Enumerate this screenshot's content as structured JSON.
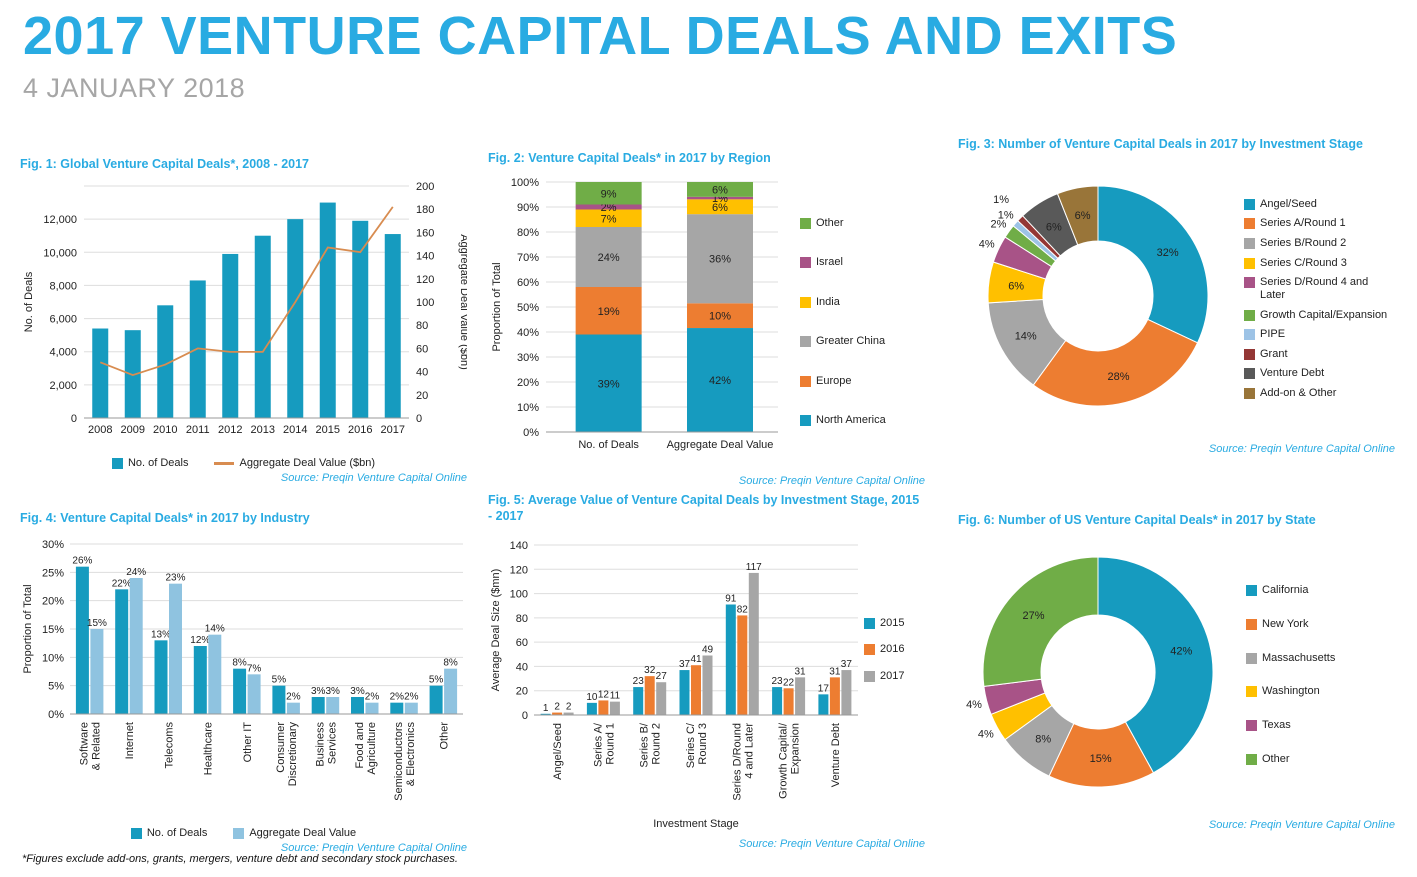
{
  "header": {
    "title": "2017 VENTURE CAPITAL DEALS AND EXITS",
    "date": "4 JANUARY 2018"
  },
  "source_label": "Source: Preqin Venture Capital Online",
  "footnote": "*Figures exclude add-ons, grants, mergers, venture debt and secondary stock purchases.",
  "colors": {
    "accent": "#29ABE2",
    "subtitle_gray": "#A6A6A6"
  },
  "chart_data": [
    {
      "id": "fig1",
      "type": "combo",
      "title": "Fig. 1: Global Venture Capital Deals*, 2008 - 2017",
      "categories": [
        "2008",
        "2009",
        "2010",
        "2011",
        "2012",
        "2013",
        "2014",
        "2015",
        "2016",
        "2017"
      ],
      "bar_series": {
        "name": "No. of Deals",
        "color": "#169BBF",
        "values": [
          5400,
          5300,
          6800,
          8300,
          9900,
          11000,
          12000,
          13000,
          11900,
          11100
        ]
      },
      "line_series": {
        "name": "Aggregate Deal Value ($bn)",
        "color": "#D88C50",
        "values": [
          48,
          37,
          46,
          60,
          57,
          57,
          100,
          147,
          143,
          182
        ]
      },
      "left_axis": {
        "label": "No. of Deals",
        "max": 14000,
        "step": 2000,
        "tick_labels": [
          "0",
          "2,000",
          "4,000",
          "6,000",
          "8,000",
          "10,000",
          "12,000"
        ]
      },
      "right_axis": {
        "label": "Aggregate Deal Value ($bn)",
        "max": 200,
        "step": 20
      }
    },
    {
      "id": "fig2",
      "type": "stacked",
      "title": "Fig. 2: Venture Capital Deals* in 2017 by Region",
      "ylabel": "Proportion of Total",
      "categories": [
        "No. of Deals",
        "Aggregate Deal Value"
      ],
      "series": [
        {
          "name": "North America",
          "color": "#169BBF",
          "values": [
            39,
            42
          ]
        },
        {
          "name": "Europe",
          "color": "#ED7D31",
          "values": [
            19,
            10
          ]
        },
        {
          "name": "Greater China",
          "color": "#A6A6A6",
          "values": [
            24,
            36
          ]
        },
        {
          "name": "India",
          "color": "#FFC000",
          "values": [
            7,
            6
          ]
        },
        {
          "name": "Israel",
          "color": "#A85387",
          "values": [
            2,
            1
          ]
        },
        {
          "name": "Other",
          "color": "#70AD47",
          "values": [
            9,
            6
          ]
        }
      ]
    },
    {
      "id": "fig3",
      "type": "donut",
      "title": "Fig. 3: Number of Venture Capital Deals in 2017 by Investment Stage",
      "slices": [
        {
          "label": "Angel/Seed",
          "value": 32,
          "color": "#169BBF"
        },
        {
          "label": "Series A/Round 1",
          "value": 28,
          "color": "#ED7D31"
        },
        {
          "label": "Series B/Round 2",
          "value": 14,
          "color": "#A6A6A6"
        },
        {
          "label": "Series C/Round 3",
          "value": 6,
          "color": "#FFC000"
        },
        {
          "label": "Series D/Round 4 and Later",
          "value": 4,
          "color": "#A85387"
        },
        {
          "label": "Growth Capital/Expansion",
          "value": 2,
          "color": "#70AD47"
        },
        {
          "label": "PIPE",
          "value": 1,
          "color": "#9DC3E6"
        },
        {
          "label": "Grant",
          "value": 1,
          "color": "#943735"
        },
        {
          "label": "Venture Debt",
          "value": 6,
          "color": "#595959"
        },
        {
          "label": "Add-on & Other",
          "value": 6,
          "color": "#997539"
        }
      ]
    },
    {
      "id": "fig4",
      "type": "grouped",
      "title": "Fig. 4: Venture Capital Deals* in 2017 by Industry",
      "ylabel": "Proportion of Total",
      "y_max": 30,
      "y_step": 5,
      "y_suffix": "%",
      "label_suffix": "%",
      "categories": [
        [
          "Software",
          "& Related"
        ],
        [
          "Internet"
        ],
        [
          "Telecoms"
        ],
        [
          "Healthcare"
        ],
        [
          "Other IT"
        ],
        [
          "Consumer",
          "Discretionary"
        ],
        [
          "Business",
          "Services"
        ],
        [
          "Food and",
          "Agriculture"
        ],
        [
          "Semiconductors",
          "& Electronics"
        ],
        [
          "Other"
        ]
      ],
      "series": [
        {
          "name": "No. of Deals",
          "color": "#169BBF",
          "values": [
            26,
            22,
            13,
            12,
            8,
            5,
            3,
            3,
            2,
            5
          ]
        },
        {
          "name": "Aggregate Deal Value",
          "color": "#8FC3E0",
          "values": [
            15,
            24,
            23,
            14,
            7,
            2,
            3,
            2,
            2,
            8
          ]
        }
      ]
    },
    {
      "id": "fig5",
      "type": "grouped",
      "title": "Fig. 5: Average Value of Venture Capital Deals by Investment Stage, 2015 - 2017",
      "ylabel": "Average Deal Size ($mn)",
      "xlabel": "Investment Stage",
      "y_max": 140,
      "y_step": 20,
      "y_suffix": "",
      "label_suffix": "",
      "categories": [
        [
          "Angel/Seed"
        ],
        [
          "Series A/",
          "Round 1"
        ],
        [
          "Series B/",
          "Round 2"
        ],
        [
          "Series C/",
          "Round 3"
        ],
        [
          "Series D/Round",
          "4 and Later"
        ],
        [
          "Growth Capital/",
          "Expansion"
        ],
        [
          "Venture Debt"
        ]
      ],
      "series": [
        {
          "name": "2015",
          "color": "#169BBF",
          "values": [
            1,
            10,
            23,
            37,
            91,
            23,
            17
          ]
        },
        {
          "name": "2016",
          "color": "#ED7D31",
          "values": [
            2,
            12,
            32,
            41,
            82,
            22,
            31
          ]
        },
        {
          "name": "2017",
          "color": "#A6A6A6",
          "values": [
            2,
            11,
            27,
            49,
            117,
            31,
            37
          ]
        }
      ]
    },
    {
      "id": "fig6",
      "type": "donut",
      "title": "Fig. 6: Number of US Venture Capital Deals* in 2017 by State",
      "slices": [
        {
          "label": "California",
          "value": 42,
          "color": "#169BBF"
        },
        {
          "label": "New York",
          "value": 15,
          "color": "#ED7D31"
        },
        {
          "label": "Massachusetts",
          "value": 8,
          "color": "#A6A6A6"
        },
        {
          "label": "Washington",
          "value": 4,
          "color": "#FFC000"
        },
        {
          "label": "Texas",
          "value": 4,
          "color": "#A85387"
        },
        {
          "label": "Other",
          "value": 27,
          "color": "#70AD47"
        }
      ]
    }
  ]
}
